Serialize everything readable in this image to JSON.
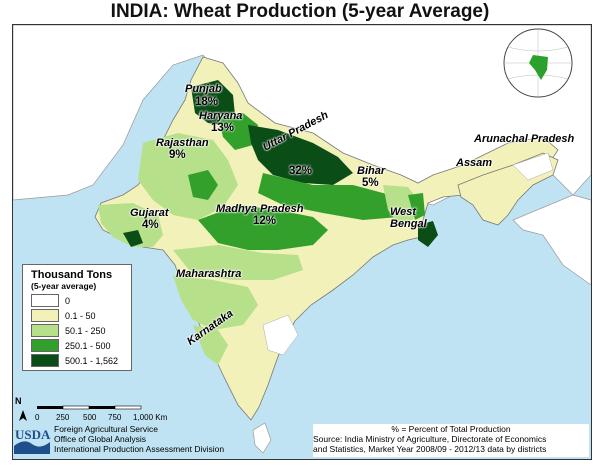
{
  "title": "INDIA: Wheat Production (5-year Average)",
  "legend": {
    "title": "Thousand Tons",
    "subtitle": "(5-year average)",
    "items": [
      {
        "label": "0",
        "color": "#ffffff"
      },
      {
        "label": "0.1 - 50",
        "color": "#f2f1b9"
      },
      {
        "label": "50.1 - 250",
        "color": "#b6e08a"
      },
      {
        "label": "250.1 - 500",
        "color": "#33a02c"
      },
      {
        "label": "500.1 - 1,562",
        "color": "#0b4d16"
      }
    ]
  },
  "states": [
    {
      "name": "Punjab",
      "pct": "18%"
    },
    {
      "name": "Haryana",
      "pct": "13%"
    },
    {
      "name": "Rajasthan",
      "pct": "9%"
    },
    {
      "name": "Uttar Pradesh",
      "pct": "32%"
    },
    {
      "name": "Bihar",
      "pct": "5%"
    },
    {
      "name": "Gujarat",
      "pct": "4%"
    },
    {
      "name": "Madhya Pradesh",
      "pct": "12%"
    },
    {
      "name": "Arunachal Pradesh",
      "pct": ""
    },
    {
      "name": "Assam",
      "pct": ""
    },
    {
      "name": "West Bengal",
      "pct": ""
    },
    {
      "name": "Maharashtra",
      "pct": ""
    },
    {
      "name": "Karnataka",
      "pct": ""
    }
  ],
  "west_bengal_line1": "West",
  "west_bengal_line2": "Bengal",
  "scale": {
    "ticks": [
      "0",
      "250",
      "500",
      "750",
      "1,000 Km"
    ],
    "north_label": "N"
  },
  "agency": {
    "logo": "USDA",
    "line1": "Foreign Agricultural Service",
    "line2": "Office of Global Analysis",
    "line3": "International Production Assessment Division"
  },
  "source": {
    "note": "% = Percent of Total Production",
    "line1": "Source: India Ministry of Agriculture, Directorate of Economics",
    "line2": "and Statistics, Market Year 2008/09 - 2012/13 data by districts"
  },
  "colors": {
    "water": "#bfe3f2",
    "neighbor_land": "#ffffff",
    "india_base": "#f2f1b9",
    "class_50_250": "#b6e08a",
    "class_250_500": "#33a02c",
    "class_500_plus": "#0b4d16",
    "locator_highlight": "#2ca02c"
  }
}
